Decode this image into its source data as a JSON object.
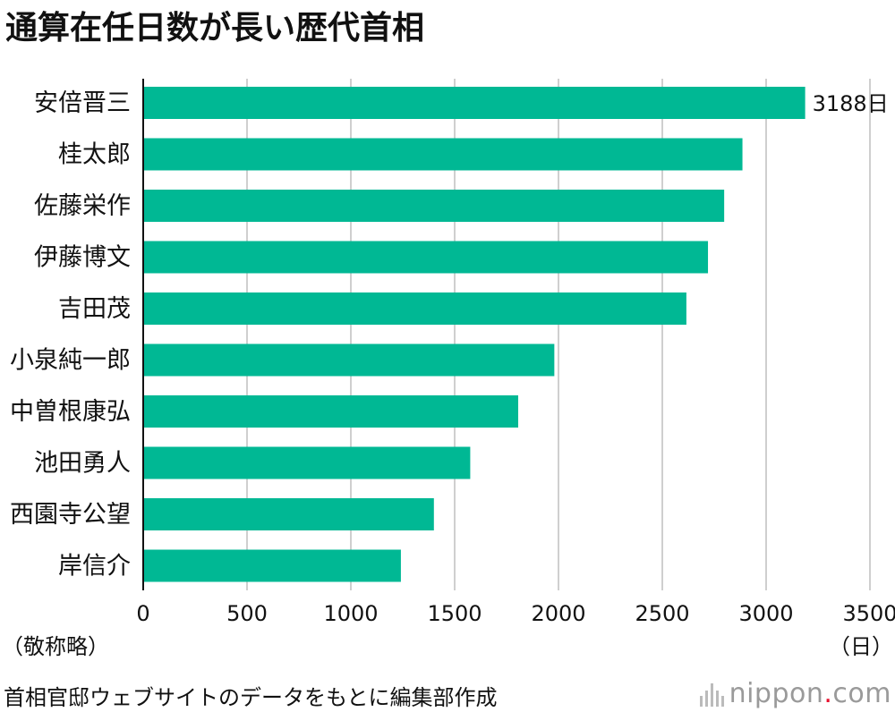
{
  "chart_data": {
    "type": "bar",
    "orientation": "horizontal",
    "title": "通算在任日数が長い歴代首相",
    "categories": [
      "安倍晋三",
      "桂太郎",
      "佐藤栄作",
      "伊藤博文",
      "吉田茂",
      "小泉純一郎",
      "中曽根康弘",
      "池田勇人",
      "西園寺公望",
      "岸信介"
    ],
    "values": [
      3188,
      2886,
      2798,
      2720,
      2616,
      1980,
      1806,
      1575,
      1400,
      1241
    ],
    "xlim": [
      0,
      3500
    ],
    "ticks": [
      0,
      500,
      1000,
      1500,
      2000,
      2500,
      3000,
      3500
    ],
    "tick_labels": [
      "0",
      "500",
      "1000",
      "1500",
      "2000",
      "2500",
      "3000",
      "3500"
    ],
    "xlabel": "（日）",
    "grid": true,
    "annotation": "3188日",
    "bar_color": "#00b894"
  },
  "notes": {
    "left": "（敬称略）",
    "right": "（日）",
    "source": "首相官邸ウェブサイトのデータをもとに編集部作成"
  },
  "logo": {
    "name": "nippon",
    "dot": ".",
    "suffix": "com"
  }
}
